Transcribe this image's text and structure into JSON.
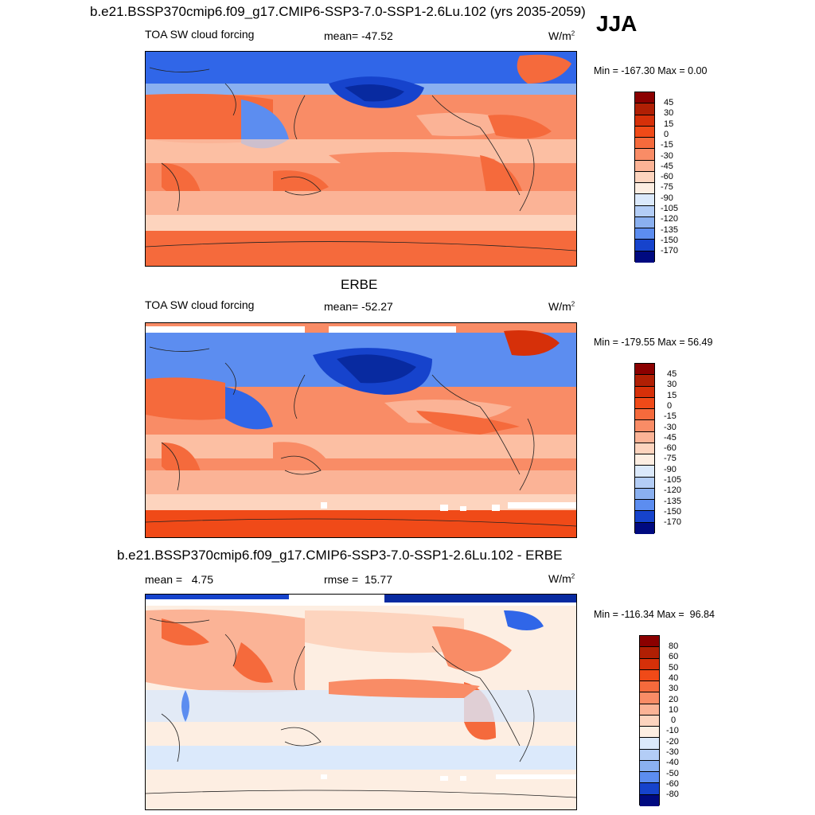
{
  "header": {
    "title": "b.e21.BSSP370cmip6.f09_g17.CMIP6-SSP3-7.0-SSP1-2.6Lu.102 (yrs 2035-2059)",
    "season": "JJA"
  },
  "panel1": {
    "left_label": "TOA SW cloud forcing",
    "mean_label": "mean= -47.52",
    "units": "W/m",
    "units_sup": "2",
    "minmax": "Min = -167.30 Max =   0.00",
    "colorbar_ticks": [
      "45",
      "30",
      "15",
      "0",
      "-15",
      "-30",
      "-45",
      "-60",
      "-75",
      "-90",
      "-105",
      "-120",
      "-135",
      "-150",
      "-170"
    ]
  },
  "panel2": {
    "title": "ERBE",
    "left_label": "TOA SW cloud forcing",
    "mean_label": "mean= -52.27",
    "units": "W/m",
    "units_sup": "2",
    "minmax": "Min = -179.55 Max =  56.49",
    "colorbar_ticks": [
      "45",
      "30",
      "15",
      "0",
      "-15",
      "-30",
      "-45",
      "-60",
      "-75",
      "-90",
      "-105",
      "-120",
      "-135",
      "-150",
      "-170"
    ]
  },
  "panel3": {
    "title": "b.e21.BSSP370cmip6.f09_g17.CMIP6-SSP3-7.0-SSP1-2.6Lu.102 - ERBE",
    "left_label": "mean =   4.75",
    "rmse_label": "rmse =  15.77",
    "units": "W/m",
    "units_sup": "2",
    "minmax": "Min = -116.34 Max =  96.84",
    "colorbar_ticks": [
      "80",
      "60",
      "50",
      "40",
      "30",
      "20",
      "10",
      "0",
      "-10",
      "-20",
      "-30",
      "-40",
      "-50",
      "-60",
      "-80"
    ]
  },
  "colors": {
    "abs_scale": [
      "#8b0000",
      "#b01f04",
      "#d63009",
      "#f04a18",
      "#f56a3c",
      "#f98c66",
      "#fbb396",
      "#fdd4be",
      "#fdeee2",
      "#dbe9fb",
      "#b3cdf6",
      "#8ab0f0",
      "#5c8df0",
      "#3066e8",
      "#1643cc",
      "#082aa0",
      "#000a80"
    ],
    "diff_scale": [
      "#8b0000",
      "#b01f04",
      "#d63009",
      "#f04a18",
      "#f56a3c",
      "#f98c66",
      "#fbb396",
      "#fdd4be",
      "#fdeee2",
      "#dbe9fb",
      "#b3cdf6",
      "#8ab0f0",
      "#5c8df0",
      "#3066e8",
      "#1643cc",
      "#082aa0",
      "#000a80"
    ]
  }
}
